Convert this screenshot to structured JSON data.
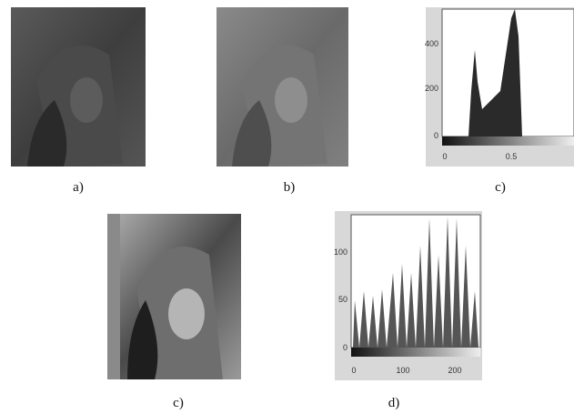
{
  "panels": [
    {
      "caption": "a)"
    },
    {
      "caption": "b)"
    },
    {
      "caption": "c)",
      "y_ticks": [
        "400",
        "200",
        "0"
      ],
      "x_ticks": [
        "0",
        "0.5"
      ]
    },
    {
      "caption": "c)"
    },
    {
      "caption": "d)",
      "y_ticks": [
        "100",
        "50",
        "0"
      ],
      "x_ticks": [
        "0",
        "100",
        "200"
      ]
    }
  ]
}
